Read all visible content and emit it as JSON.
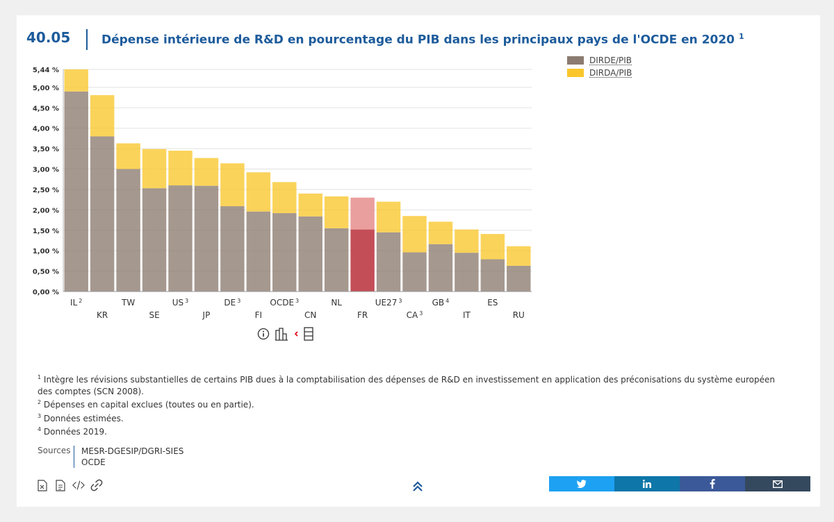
{
  "header": {
    "figure_number": "40.05",
    "title": "Dépense intérieure de R&D en pourcentage du PIB dans les principaux pays de l'OCDE en 2020",
    "title_note": "1"
  },
  "legend": [
    {
      "label": "DIRDE/PIB",
      "color": "#8c7b70"
    },
    {
      "label": "DIRDA/PIB",
      "color": "#f9c62c"
    }
  ],
  "chart_data": {
    "type": "bar",
    "stacked": true,
    "title": "Dépense intérieure de R&D en pourcentage du PIB dans les principaux pays de l'OCDE en 2020",
    "categories": [
      "IL",
      "KR",
      "TW",
      "SE",
      "US",
      "JP",
      "DE",
      "FI",
      "OCDE",
      "CN",
      "NL",
      "FR",
      "UE27",
      "CA",
      "GB",
      "IT",
      "ES",
      "RU"
    ],
    "category_notes": [
      "2",
      "",
      "",
      "",
      "3",
      "",
      "3",
      "",
      "3",
      "",
      "",
      "",
      "3",
      "3",
      "4",
      "",
      "",
      ""
    ],
    "series": [
      {
        "name": "DIRDE/PIB",
        "color": "#8c7b70",
        "values": [
          4.9,
          3.8,
          3.0,
          2.53,
          2.6,
          2.59,
          2.09,
          1.96,
          1.92,
          1.84,
          1.55,
          1.52,
          1.45,
          0.96,
          1.16,
          0.95,
          0.79,
          0.63
        ]
      },
      {
        "name": "DIRDA/PIB",
        "color": "#f9c62c",
        "values": [
          0.54,
          1.01,
          0.63,
          0.96,
          0.85,
          0.68,
          1.05,
          0.96,
          0.76,
          0.56,
          0.78,
          0.78,
          0.75,
          0.89,
          0.55,
          0.57,
          0.62,
          0.48
        ]
      }
    ],
    "highlight": {
      "category": "FR",
      "colors": [
        "#c0454e",
        "#e89a98"
      ]
    },
    "y_ticks": [
      "0,00 %",
      "0,50 %",
      "1,00 %",
      "1,50 %",
      "2,00 %",
      "2,50 %",
      "3,00 %",
      "3,50 %",
      "4,00 %",
      "4,50 %",
      "5,00 %",
      "5,44 %"
    ],
    "y_tick_values": [
      0,
      0.5,
      1.0,
      1.5,
      2.0,
      2.5,
      3.0,
      3.5,
      4.0,
      4.5,
      5.0,
      5.44
    ],
    "ylim": [
      0,
      5.44
    ],
    "grid": true,
    "legend_position": "top-right",
    "xlabel": "",
    "ylabel": ""
  },
  "controls": {
    "info_icon": "info-circle-icon",
    "chart_view_icon": "bar-chart-icon",
    "table_view_icon": "table-icon"
  },
  "notes": [
    {
      "num": "1",
      "text": "Intègre les révisions substantielles de certains PIB dues à la comptabilisation des dépenses de R&D en investissement en application des préconisations du système européen des comptes (SCN 2008)."
    },
    {
      "num": "2",
      "text": "Dépenses en capital exclues (toutes ou en partie)."
    },
    {
      "num": "3",
      "text": "Données estimées."
    },
    {
      "num": "4",
      "text": "Données 2019."
    }
  ],
  "sources": {
    "label": "Sources",
    "items": [
      "MESR-DGESIP/DGRI-SIES",
      "OCDE"
    ]
  },
  "share": {
    "colors": [
      "#1da1f2",
      "#0e76a8",
      "#3b5998",
      "#34495e"
    ],
    "icons": [
      "twitter-icon",
      "linkedin-icon",
      "facebook-icon",
      "email-icon"
    ]
  }
}
